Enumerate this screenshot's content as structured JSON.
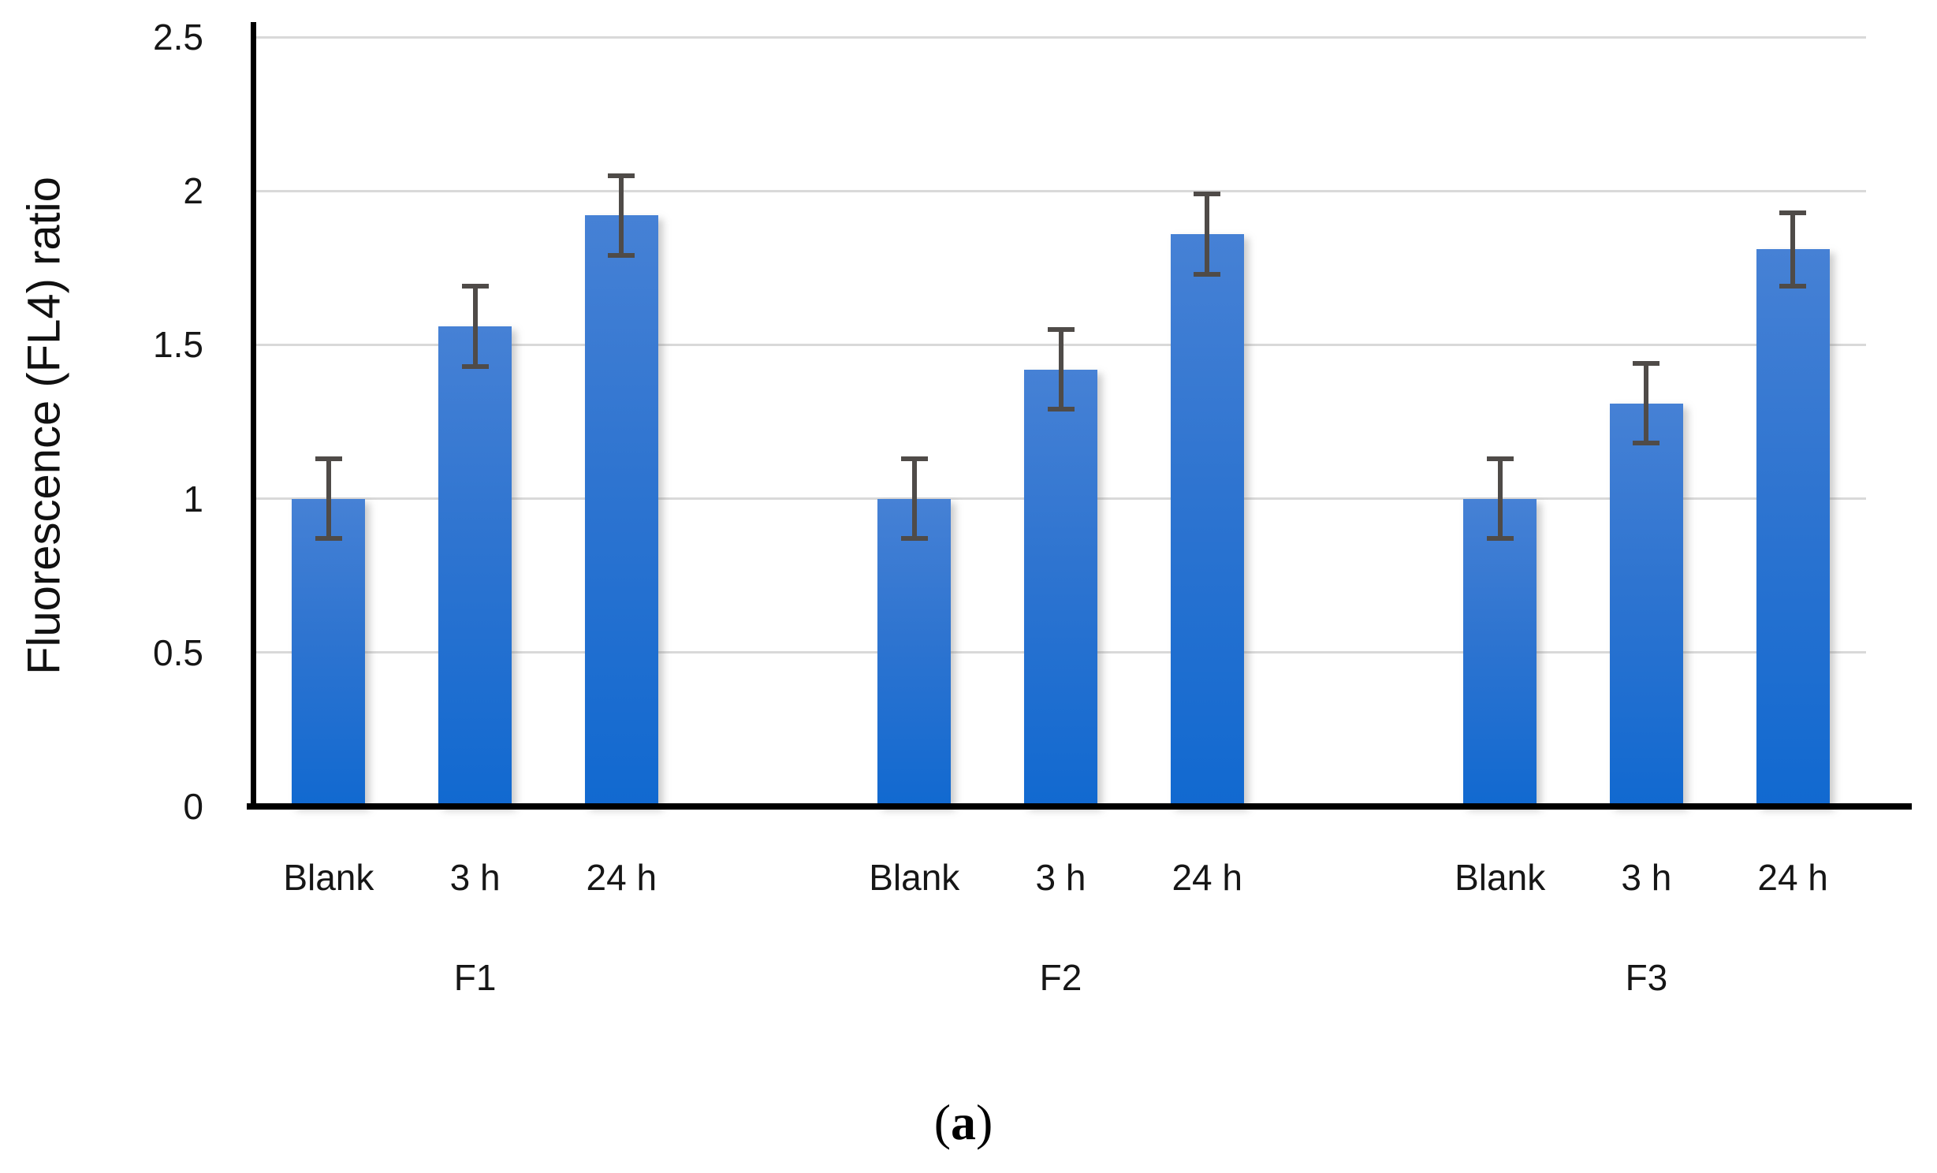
{
  "figure_caption": "(a)",
  "chart_data": {
    "type": "bar",
    "title": "",
    "ylabel": "Fluorescence (FL4) ratio",
    "xlabel": "",
    "ylim": [
      0,
      2.5
    ],
    "yticks": [
      0,
      0.5,
      1,
      1.5,
      2,
      2.5
    ],
    "ytick_labels": [
      "0",
      "0.5",
      "1",
      "1.5",
      "2",
      "2.5"
    ],
    "grid": true,
    "legend": false,
    "groups": [
      {
        "label": "F1",
        "bars": [
          {
            "category": "Blank",
            "value": 1.0,
            "error": 0.13
          },
          {
            "category": "3 h",
            "value": 1.56,
            "error": 0.13
          },
          {
            "category": "24 h",
            "value": 1.92,
            "error": 0.13
          }
        ]
      },
      {
        "label": "F2",
        "bars": [
          {
            "category": "Blank",
            "value": 1.0,
            "error": 0.13
          },
          {
            "category": "3 h",
            "value": 1.42,
            "error": 0.13
          },
          {
            "category": "24 h",
            "value": 1.86,
            "error": 0.13
          }
        ]
      },
      {
        "label": "F3",
        "bars": [
          {
            "category": "Blank",
            "value": 1.0,
            "error": 0.13
          },
          {
            "category": "3 h",
            "value": 1.31,
            "error": 0.13
          },
          {
            "category": "24 h",
            "value": 1.81,
            "error": 0.12
          }
        ]
      }
    ],
    "colors": {
      "bar_top": "#4681d5",
      "bar_bottom": "#1169d0",
      "error_bar": "#4f4b48",
      "gridline": "#d9d9d9",
      "axis": "#000000"
    }
  }
}
